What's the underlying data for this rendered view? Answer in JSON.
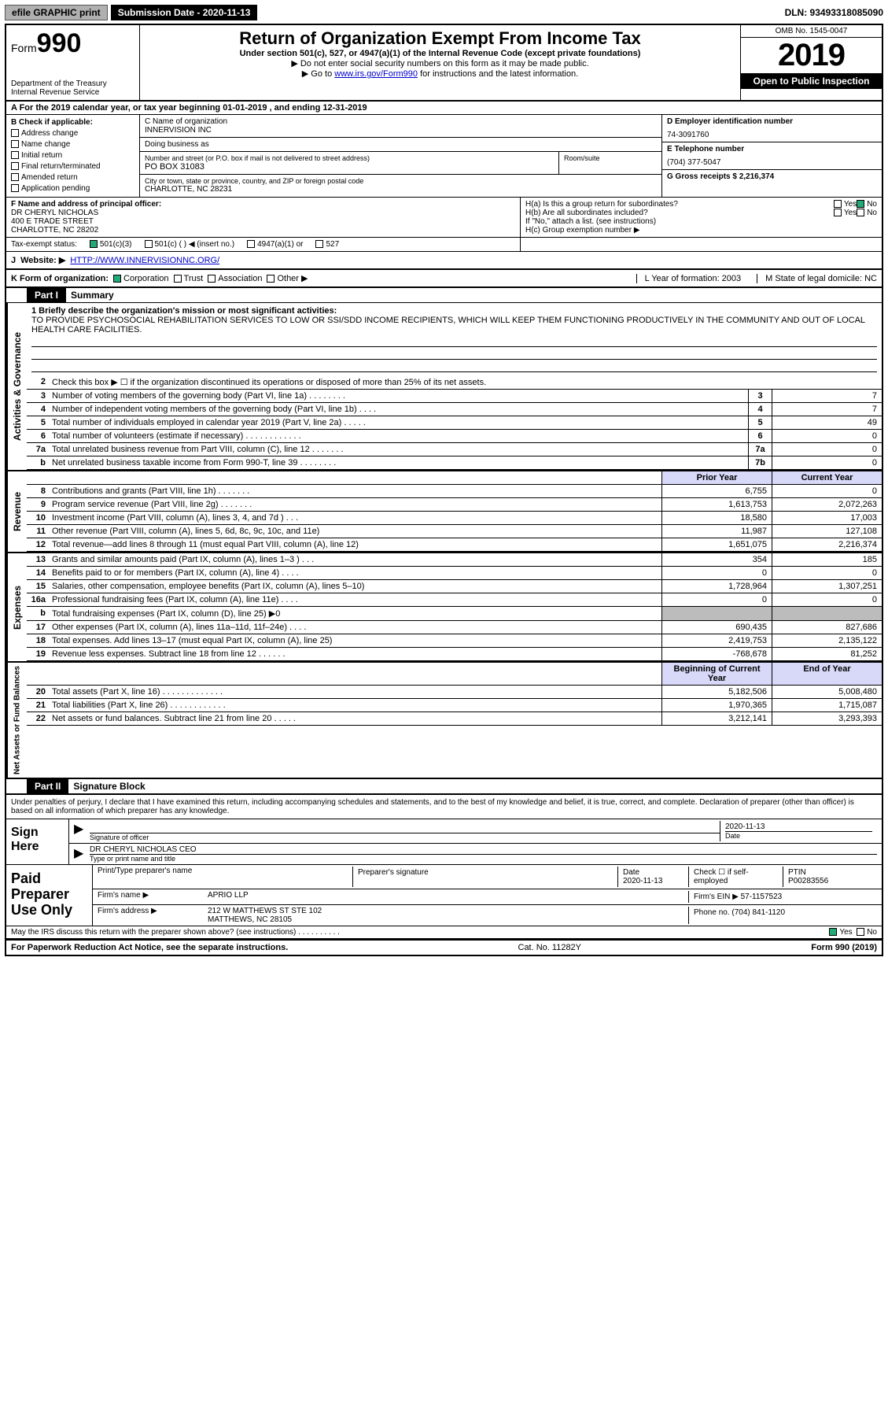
{
  "topbar": {
    "efile_btn": "efile GRAPHIC print",
    "sub_label": "Submission Date - 2020-11-13",
    "dln": "DLN: 93493318085090"
  },
  "header": {
    "form_label": "Form",
    "form_no": "990",
    "dept1": "Department of the Treasury",
    "dept2": "Internal Revenue Service",
    "title": "Return of Organization Exempt From Income Tax",
    "sub1": "Under section 501(c), 527, or 4947(a)(1) of the Internal Revenue Code (except private foundations)",
    "sub2": "▶ Do not enter social security numbers on this form as it may be made public.",
    "sub3_pre": "▶ Go to ",
    "sub3_link": "www.irs.gov/Form990",
    "sub3_post": " for instructions and the latest information.",
    "omb": "OMB No. 1545-0047",
    "year": "2019",
    "open": "Open to Public Inspection"
  },
  "rowA": "A For the 2019 calendar year, or tax year beginning 01-01-2019    , and ending 12-31-2019",
  "colB": {
    "head": "B Check if applicable:",
    "items": [
      "Address change",
      "Name change",
      "Initial return",
      "Final return/terminated",
      "Amended return",
      "Application pending"
    ]
  },
  "colC": {
    "c_label": "C Name of organization",
    "org": "INNERVISION INC",
    "dba": "Doing business as",
    "addr_label": "Number and street (or P.O. box if mail is not delivered to street address)",
    "room": "Room/suite",
    "addr": "PO BOX 31083",
    "city_label": "City or town, state or province, country, and ZIP or foreign postal code",
    "city": "CHARLOTTE, NC  28231"
  },
  "colD": {
    "label": "D Employer identification number",
    "val": "74-3091760"
  },
  "colE": {
    "label": "E Telephone number",
    "val": "(704) 377-5047"
  },
  "colG": {
    "label": "G Gross receipts $ 2,216,374"
  },
  "rowF": {
    "label": "F  Name and address of principal officer:",
    "l1": "DR CHERYL NICHOLAS",
    "l2": "400 E TRADE STREET",
    "l3": "CHARLOTTE, NC  28202"
  },
  "rowH": {
    "ha": "H(a)  Is this a group return for subordinates?",
    "hb": "H(b)  Are all subordinates included?",
    "hb2": "If \"No,\" attach a list. (see instructions)",
    "hc": "H(c)  Group exemption number ▶",
    "yes": "Yes",
    "no": "No"
  },
  "rowI": {
    "label": "Tax-exempt status:",
    "o1": "501(c)(3)",
    "o2": "501(c) (   ) ◀ (insert no.)",
    "o3": "4947(a)(1) or",
    "o4": "527"
  },
  "rowJ": {
    "label": "J",
    "text": "Website: ▶",
    "url": "HTTP://WWW.INNERVISIONNC.ORG/"
  },
  "rowK": {
    "label": "K Form of organization:",
    "o1": "Corporation",
    "o2": "Trust",
    "o3": "Association",
    "o4": "Other ▶",
    "l_label": "L Year of formation: 2003",
    "m_label": "M State of legal domicile: NC"
  },
  "part1": {
    "bar": "Part I",
    "title": "Summary"
  },
  "mission": {
    "label": "1  Briefly describe the organization's mission or most significant activities:",
    "text": "TO PROVIDE PSYCHOSOCIAL REHABILITATION SERVICES TO LOW OR SSI/SDD INCOME RECIPIENTS, WHICH WILL KEEP THEM FUNCTIONING PRODUCTIVELY IN THE COMMUNITY AND OUT OF LOCAL HEALTH CARE FACILITIES."
  },
  "activities": {
    "side": "Activities & Governance",
    "l2": "Check this box ▶ ☐  if the organization discontinued its operations or disposed of more than 25% of its net assets.",
    "lines": [
      {
        "n": "3",
        "d": "Number of voting members of the governing body (Part VI, line 1a)   .    .    .    .    .    .    .    .",
        "b": "3",
        "v": "7"
      },
      {
        "n": "4",
        "d": "Number of independent voting members of the governing body (Part VI, line 1b)   .    .    .    .",
        "b": "4",
        "v": "7"
      },
      {
        "n": "5",
        "d": "Total number of individuals employed in calendar year 2019 (Part V, line 2a)   .    .    .    .    .",
        "b": "5",
        "v": "49"
      },
      {
        "n": "6",
        "d": "Total number of volunteers (estimate if necessary)    .    .    .    .    .    .    .    .    .    .    .    .",
        "b": "6",
        "v": "0"
      },
      {
        "n": "7a",
        "d": "Total unrelated business revenue from Part VIII, column (C), line 12   .    .    .    .    .    .    .",
        "b": "7a",
        "v": "0"
      },
      {
        "n": "b",
        "d": "Net unrelated business taxable income from Form 990-T, line 39   .    .    .    .    .    .    .    .",
        "b": "7b",
        "v": "0"
      }
    ]
  },
  "revenue": {
    "side": "Revenue",
    "hdr_prior": "Prior Year",
    "hdr_curr": "Current Year",
    "lines": [
      {
        "n": "8",
        "d": "Contributions and grants (Part VIII, line 1h)   .    .    .    .    .    .    .",
        "p": "6,755",
        "c": "0"
      },
      {
        "n": "9",
        "d": "Program service revenue (Part VIII, line 2g)   .    .    .    .    .    .    .",
        "p": "1,613,753",
        "c": "2,072,263"
      },
      {
        "n": "10",
        "d": "Investment income (Part VIII, column (A), lines 3, 4, and 7d )   .    .    .",
        "p": "18,580",
        "c": "17,003"
      },
      {
        "n": "11",
        "d": "Other revenue (Part VIII, column (A), lines 5, 6d, 8c, 9c, 10c, and 11e)",
        "p": "11,987",
        "c": "127,108"
      },
      {
        "n": "12",
        "d": "Total revenue—add lines 8 through 11 (must equal Part VIII, column (A), line 12)",
        "p": "1,651,075",
        "c": "2,216,374"
      }
    ]
  },
  "expenses": {
    "side": "Expenses",
    "lines": [
      {
        "n": "13",
        "d": "Grants and similar amounts paid (Part IX, column (A), lines 1–3 )   .    .    .",
        "p": "354",
        "c": "185"
      },
      {
        "n": "14",
        "d": "Benefits paid to or for members (Part IX, column (A), line 4)   .    .    .    .",
        "p": "0",
        "c": "0"
      },
      {
        "n": "15",
        "d": "Salaries, other compensation, employee benefits (Part IX, column (A), lines 5–10)",
        "p": "1,728,964",
        "c": "1,307,251"
      },
      {
        "n": "16a",
        "d": "Professional fundraising fees (Part IX, column (A), line 11e)   .    .    .    .",
        "p": "0",
        "c": "0"
      },
      {
        "n": "b",
        "d": "Total fundraising expenses (Part IX, column (D), line 25) ▶0",
        "p": "",
        "c": "",
        "grey": true
      },
      {
        "n": "17",
        "d": "Other expenses (Part IX, column (A), lines 11a–11d, 11f–24e)   .    .    .    .",
        "p": "690,435",
        "c": "827,686"
      },
      {
        "n": "18",
        "d": "Total expenses. Add lines 13–17 (must equal Part IX, column (A), line 25)",
        "p": "2,419,753",
        "c": "2,135,122"
      },
      {
        "n": "19",
        "d": "Revenue less expenses. Subtract line 18 from line 12  .    .    .    .    .    .",
        "p": "-768,678",
        "c": "81,252"
      }
    ]
  },
  "netassets": {
    "side": "Net Assets or Fund Balances",
    "hdr_prior": "Beginning of Current Year",
    "hdr_curr": "End of Year",
    "lines": [
      {
        "n": "20",
        "d": "Total assets (Part X, line 16)   .    .    .    .    .    .    .    .    .    .    .    .    .",
        "p": "5,182,506",
        "c": "5,008,480"
      },
      {
        "n": "21",
        "d": "Total liabilities (Part X, line 26)   .    .    .    .    .    .    .    .    .    .    .    .",
        "p": "1,970,365",
        "c": "1,715,087"
      },
      {
        "n": "22",
        "d": "Net assets or fund balances. Subtract line 21 from line 20   .    .    .    .    .",
        "p": "3,212,141",
        "c": "3,293,393"
      }
    ]
  },
  "part2": {
    "bar": "Part II",
    "title": "Signature Block"
  },
  "penalties": "Under penalties of perjury, I declare that I have examined this return, including accompanying schedules and statements, and to the best of my knowledge and belief, it is true, correct, and complete. Declaration of preparer (other than officer) is based on all information of which preparer has any knowledge.",
  "sign": {
    "here": "Sign Here",
    "sig_officer": "Signature of officer",
    "date": "Date",
    "date_v": "2020-11-13",
    "name": "DR CHERYL NICHOLAS CEO",
    "name_lbl": "Type or print name and title"
  },
  "paid": {
    "title": "Paid Preparer Use Only",
    "h1": "Print/Type preparer's name",
    "h2": "Preparer's signature",
    "h3": "Date",
    "h3v": "2020-11-13",
    "h4": "Check ☐ if self-employed",
    "h5": "PTIN",
    "h5v": "P00283556",
    "firm_lbl": "Firm's name   ▶",
    "firm": "APRIO LLP",
    "ein_lbl": "Firm's EIN ▶ 57-1157523",
    "addr_lbl": "Firm's address ▶",
    "addr1": "212 W MATTHEWS ST STE 102",
    "addr2": "MATTHEWS, NC  28105",
    "phone_lbl": "Phone no. (704) 841-1120"
  },
  "discuss": "May the IRS discuss this return with the preparer shown above? (see instructions)   .    .    .    .    .    .    .    .    .    .",
  "footer": {
    "left": "For Paperwork Reduction Act Notice, see the separate instructions.",
    "mid": "Cat. No. 11282Y",
    "right": "Form 990 (2019)"
  },
  "colors": {
    "blue": "#0000cc",
    "black": "#000",
    "hdr_bg": "#d8d8f8",
    "grey": "#bcbcbc"
  }
}
